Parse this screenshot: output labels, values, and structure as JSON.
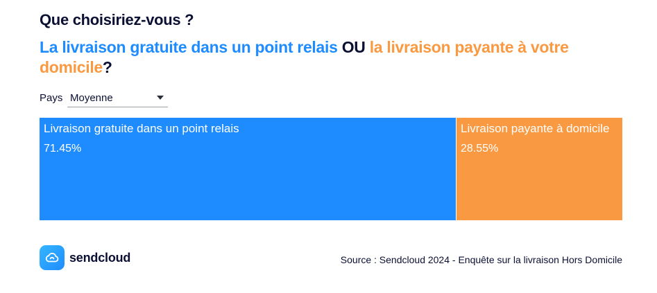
{
  "title": "Que choisiriez-vous ?",
  "subtitle": {
    "part_a": "La livraison gratuite dans un point relais",
    "connector": " OU ",
    "part_b": "la livraison payante à votre domicile",
    "end": "?"
  },
  "filter": {
    "label": "Pays",
    "selected": "Moyenne"
  },
  "colors": {
    "option_a": "#1e8cff",
    "option_b": "#f99a42",
    "text_dark": "#0b1033"
  },
  "chart_data": {
    "type": "bar",
    "categories": [
      "Livraison gratuite dans un point relais",
      "Livraison payante à domicile"
    ],
    "values": [
      71.45,
      28.55
    ],
    "value_labels": [
      "71.45%",
      "28.55%"
    ],
    "colors": [
      "#1e8cff",
      "#f99a42"
    ],
    "unit": "%"
  },
  "brand": {
    "name": "sendcloud",
    "icon": "cloud-icon"
  },
  "source": "Source : Sendcloud 2024 - Enquête sur la livraison Hors Domicile"
}
